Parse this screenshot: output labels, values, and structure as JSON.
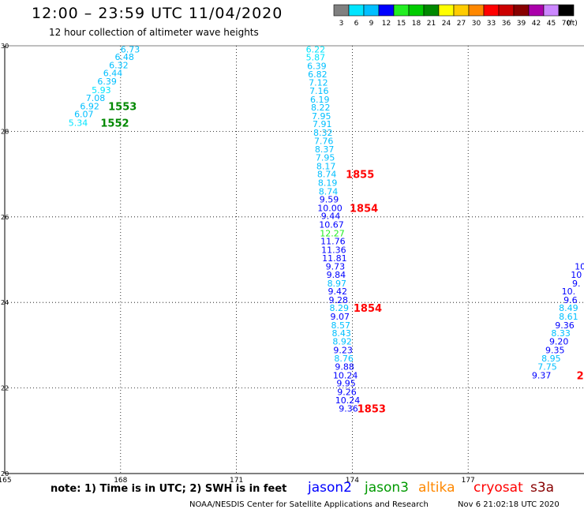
{
  "header": {
    "title": "12:00 – 23:59 UTC 11/04/2020",
    "subtitle": "12 hour collection of altimeter wave heights"
  },
  "color_scale": {
    "unit_label": "(ft)",
    "bins": [
      {
        "label": "3",
        "color": "#808080"
      },
      {
        "label": "6",
        "color": "#00e5ff"
      },
      {
        "label": "9",
        "color": "#00bfff"
      },
      {
        "label": "12",
        "color": "#0000ff"
      },
      {
        "label": "15",
        "color": "#22ee22"
      },
      {
        "label": "18",
        "color": "#00cc00"
      },
      {
        "label": "21",
        "color": "#008800"
      },
      {
        "label": "24",
        "color": "#ffff00"
      },
      {
        "label": "27",
        "color": "#ffcc00"
      },
      {
        "label": "30",
        "color": "#ff8800"
      },
      {
        "label": "33",
        "color": "#ff0000"
      },
      {
        "label": "36",
        "color": "#cc0000"
      },
      {
        "label": "39",
        "color": "#880000"
      },
      {
        "label": "42",
        "color": "#aa00aa"
      },
      {
        "label": "45",
        "color": "#cc88ff"
      },
      {
        "label": "70",
        "color": "#000000"
      }
    ]
  },
  "chart_data": {
    "type": "scatter",
    "xlim": [
      165,
      180
    ],
    "ylim": [
      20,
      30
    ],
    "x_ticks": [
      "165",
      "168",
      "171",
      "174",
      "177"
    ],
    "x_tick_values": [
      165,
      168,
      171,
      174,
      177
    ],
    "y_ticks": [
      "20",
      "22",
      "24",
      "26",
      "28",
      "30"
    ],
    "y_tick_values": [
      20,
      22,
      24,
      26,
      28,
      30
    ],
    "grid": true,
    "points": [
      {
        "x": 168.25,
        "y": 29.92,
        "v": "6.73",
        "c": "#00bfff"
      },
      {
        "x": 168.1,
        "y": 29.74,
        "v": "6.48",
        "c": "#00bfff"
      },
      {
        "x": 167.95,
        "y": 29.55,
        "v": "6.32",
        "c": "#00bfff"
      },
      {
        "x": 167.8,
        "y": 29.36,
        "v": "6.44",
        "c": "#00bfff"
      },
      {
        "x": 167.65,
        "y": 29.17,
        "v": "6.39",
        "c": "#00bfff"
      },
      {
        "x": 167.5,
        "y": 28.97,
        "v": "5.93",
        "c": "#00e5ff"
      },
      {
        "x": 167.35,
        "y": 28.78,
        "v": "7.08",
        "c": "#00bfff"
      },
      {
        "x": 167.2,
        "y": 28.59,
        "v": "6.92",
        "c": "#00bfff"
      },
      {
        "x": 167.05,
        "y": 28.4,
        "v": "6.07",
        "c": "#00bfff"
      },
      {
        "x": 166.9,
        "y": 28.2,
        "v": "5.34",
        "c": "#00e5ff"
      },
      {
        "x": 173.05,
        "y": 29.92,
        "v": "6.22",
        "c": "#00e5ff"
      },
      {
        "x": 173.05,
        "y": 29.73,
        "v": "5.87",
        "c": "#00e5ff"
      },
      {
        "x": 173.08,
        "y": 29.53,
        "v": "6.39",
        "c": "#00bfff"
      },
      {
        "x": 173.1,
        "y": 29.34,
        "v": "6.82",
        "c": "#00bfff"
      },
      {
        "x": 173.12,
        "y": 29.14,
        "v": "7.12",
        "c": "#00bfff"
      },
      {
        "x": 173.14,
        "y": 28.95,
        "v": "7.16",
        "c": "#00bfff"
      },
      {
        "x": 173.16,
        "y": 28.75,
        "v": "6.19",
        "c": "#00bfff"
      },
      {
        "x": 173.18,
        "y": 28.56,
        "v": "8.22",
        "c": "#00bfff"
      },
      {
        "x": 173.2,
        "y": 28.36,
        "v": "7.95",
        "c": "#00bfff"
      },
      {
        "x": 173.22,
        "y": 28.17,
        "v": "7.91",
        "c": "#00bfff"
      },
      {
        "x": 173.24,
        "y": 27.97,
        "v": "8.32",
        "c": "#00bfff"
      },
      {
        "x": 173.26,
        "y": 27.78,
        "v": "7.76",
        "c": "#00bfff"
      },
      {
        "x": 173.28,
        "y": 27.58,
        "v": "8.37",
        "c": "#00bfff"
      },
      {
        "x": 173.3,
        "y": 27.39,
        "v": "7.95",
        "c": "#00bfff"
      },
      {
        "x": 173.32,
        "y": 27.19,
        "v": "8.17",
        "c": "#00bfff"
      },
      {
        "x": 173.34,
        "y": 27.0,
        "v": "8.74",
        "c": "#00bfff"
      },
      {
        "x": 173.36,
        "y": 26.8,
        "v": "8.19",
        "c": "#00bfff"
      },
      {
        "x": 173.38,
        "y": 26.6,
        "v": "8.74",
        "c": "#00bfff"
      },
      {
        "x": 173.4,
        "y": 26.41,
        "v": "9.59",
        "c": "#0000ff"
      },
      {
        "x": 173.42,
        "y": 26.21,
        "v": "10.00",
        "c": "#0000ff"
      },
      {
        "x": 173.44,
        "y": 26.02,
        "v": "9.44",
        "c": "#0000ff"
      },
      {
        "x": 173.46,
        "y": 25.82,
        "v": "10.67",
        "c": "#0000ff"
      },
      {
        "x": 173.48,
        "y": 25.62,
        "v": "12.27",
        "c": "#22ee22"
      },
      {
        "x": 173.5,
        "y": 25.43,
        "v": "11.76",
        "c": "#0000ff"
      },
      {
        "x": 173.52,
        "y": 25.23,
        "v": "11.36",
        "c": "#0000ff"
      },
      {
        "x": 173.54,
        "y": 25.04,
        "v": "11.81",
        "c": "#0000ff"
      },
      {
        "x": 173.56,
        "y": 24.84,
        "v": "9.73",
        "c": "#0000ff"
      },
      {
        "x": 173.58,
        "y": 24.65,
        "v": "9.84",
        "c": "#0000ff"
      },
      {
        "x": 173.6,
        "y": 24.45,
        "v": "8.97",
        "c": "#00bfff"
      },
      {
        "x": 173.62,
        "y": 24.26,
        "v": "9.42",
        "c": "#0000ff"
      },
      {
        "x": 173.64,
        "y": 24.06,
        "v": "9.28",
        "c": "#0000ff"
      },
      {
        "x": 173.66,
        "y": 23.87,
        "v": "8.29",
        "c": "#00bfff"
      },
      {
        "x": 173.68,
        "y": 23.67,
        "v": "9.07",
        "c": "#0000ff"
      },
      {
        "x": 173.7,
        "y": 23.47,
        "v": "8.57",
        "c": "#00bfff"
      },
      {
        "x": 173.72,
        "y": 23.28,
        "v": "8.43",
        "c": "#00bfff"
      },
      {
        "x": 173.74,
        "y": 23.09,
        "v": "8.92",
        "c": "#00bfff"
      },
      {
        "x": 173.76,
        "y": 22.89,
        "v": "9.23",
        "c": "#0000ff"
      },
      {
        "x": 173.78,
        "y": 22.69,
        "v": "8.76",
        "c": "#00bfff"
      },
      {
        "x": 173.8,
        "y": 22.5,
        "v": "9.88",
        "c": "#0000ff"
      },
      {
        "x": 173.82,
        "y": 22.3,
        "v": "10.24",
        "c": "#0000ff"
      },
      {
        "x": 173.84,
        "y": 22.11,
        "v": "9.95",
        "c": "#0000ff"
      },
      {
        "x": 173.86,
        "y": 21.91,
        "v": "9.26",
        "c": "#0000ff"
      },
      {
        "x": 173.88,
        "y": 21.72,
        "v": "10.24",
        "c": "#0000ff"
      },
      {
        "x": 173.9,
        "y": 21.52,
        "v": "9.36",
        "c": "#0000ff"
      },
      {
        "x": 179.9,
        "y": 24.84,
        "v": "10",
        "c": "#0000ff"
      },
      {
        "x": 179.8,
        "y": 24.65,
        "v": "10",
        "c": "#0000ff"
      },
      {
        "x": 179.8,
        "y": 24.45,
        "v": "9.",
        "c": "#0000ff"
      },
      {
        "x": 179.6,
        "y": 24.26,
        "v": "10.",
        "c": "#0000ff"
      },
      {
        "x": 179.65,
        "y": 24.06,
        "v": "9.6",
        "c": "#0000ff"
      },
      {
        "x": 179.6,
        "y": 23.87,
        "v": "8.49",
        "c": "#00bfff"
      },
      {
        "x": 179.6,
        "y": 23.67,
        "v": "8.61",
        "c": "#00bfff"
      },
      {
        "x": 179.5,
        "y": 23.47,
        "v": "9.36",
        "c": "#0000ff"
      },
      {
        "x": 179.4,
        "y": 23.28,
        "v": "8.33",
        "c": "#00bfff"
      },
      {
        "x": 179.35,
        "y": 23.09,
        "v": "9.20",
        "c": "#0000ff"
      },
      {
        "x": 179.25,
        "y": 22.89,
        "v": "9.35",
        "c": "#0000ff"
      },
      {
        "x": 179.15,
        "y": 22.69,
        "v": "8.95",
        "c": "#00bfff"
      },
      {
        "x": 179.05,
        "y": 22.5,
        "v": "7.75",
        "c": "#00bfff"
      },
      {
        "x": 178.9,
        "y": 22.3,
        "v": "9.37",
        "c": "#0000ff"
      }
    ],
    "time_labels": [
      {
        "x": 168.05,
        "y": 28.59,
        "v": "1553",
        "c": "#008800"
      },
      {
        "x": 167.85,
        "y": 28.2,
        "v": "1552",
        "c": "#008800"
      },
      {
        "x": 174.2,
        "y": 27.0,
        "v": "1855",
        "c": "#ff0000"
      },
      {
        "x": 174.3,
        "y": 26.21,
        "v": "1854",
        "c": "#ff0000"
      },
      {
        "x": 174.4,
        "y": 23.87,
        "v": "1854",
        "c": "#ff0000"
      },
      {
        "x": 174.5,
        "y": 21.52,
        "v": "1853",
        "c": "#ff0000"
      },
      {
        "x": 179.9,
        "y": 22.3,
        "v": "2",
        "c": "#ff0000"
      }
    ]
  },
  "footer": {
    "note": "note:  1) Time is in UTC;  2) SWH is in feet",
    "satellites": [
      {
        "name": "jason2",
        "color": "#0000ff"
      },
      {
        "name": "jason3",
        "color": "#009900"
      },
      {
        "name": "altika",
        "color": "#ff8800"
      },
      {
        "name": "cryosat",
        "color": "#ff0000"
      },
      {
        "name": "s3a",
        "color": "#880000"
      }
    ],
    "credit": "NOAA/NESDIS Center for Satellite Applications and Research",
    "timestamp": "Nov  6 21:02:18 UTC 2020"
  }
}
